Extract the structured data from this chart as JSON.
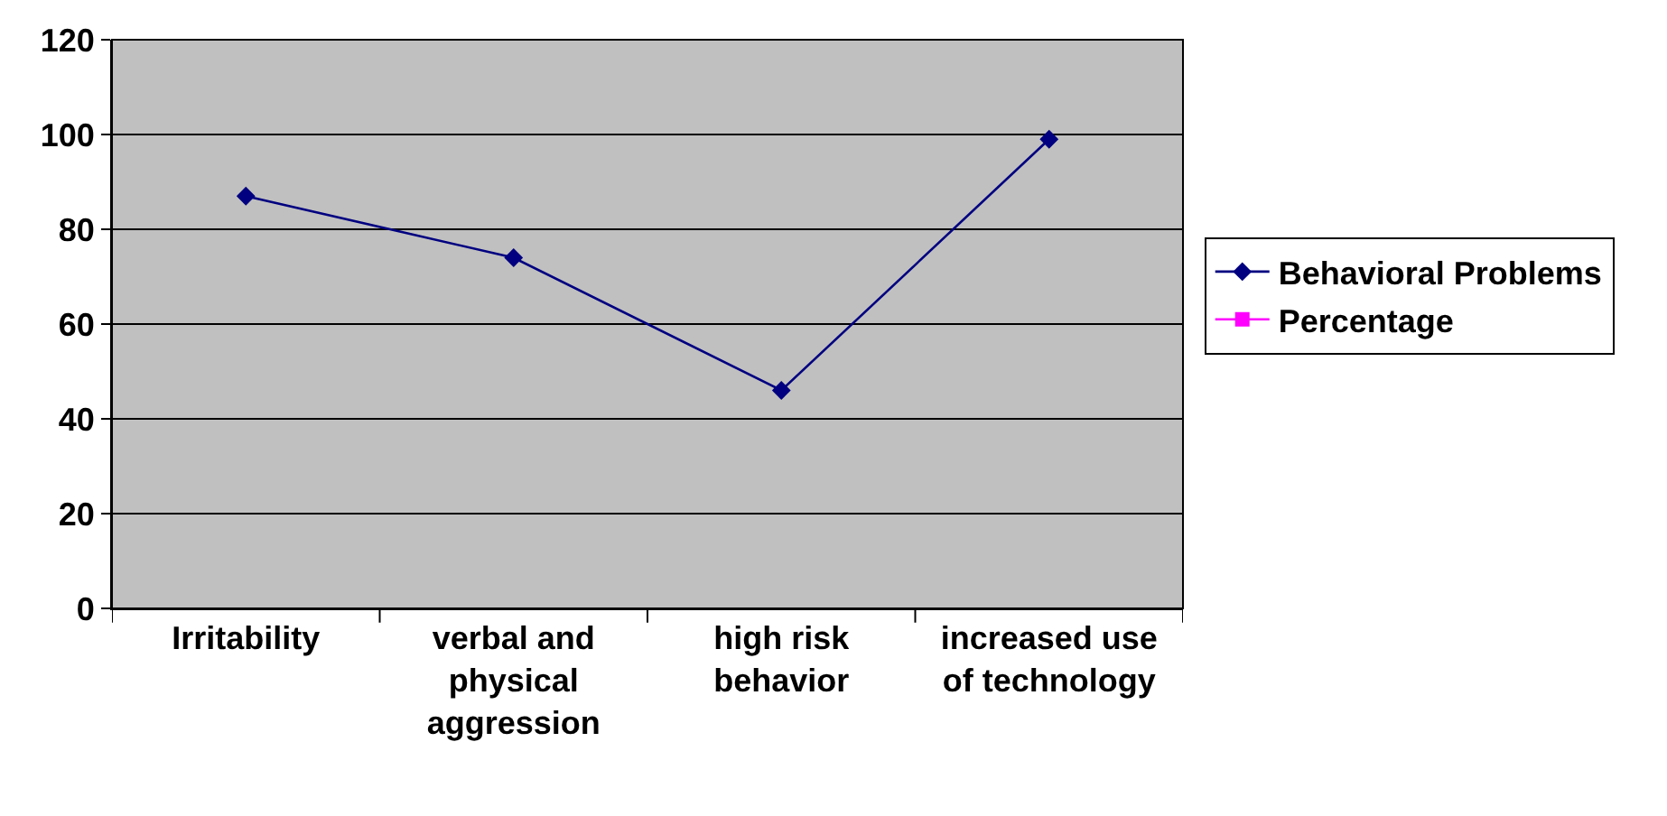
{
  "chart_data": {
    "type": "line",
    "categories": [
      "Irritability",
      "verbal and physical aggression",
      "high risk behavior",
      "increased use of technology"
    ],
    "series": [
      {
        "name": "Behavioral Problems",
        "color": "#000080",
        "marker": "diamond",
        "values": [
          87,
          74,
          46,
          99
        ]
      },
      {
        "name": "Percentage",
        "color": "#ff00ff",
        "marker": "square",
        "values": [
          null,
          null,
          null,
          null
        ]
      }
    ],
    "ylim": [
      0,
      120
    ],
    "yticks": [
      0,
      20,
      40,
      60,
      80,
      100,
      120
    ],
    "grid": "y",
    "legend": "right",
    "line_style": "solid"
  }
}
